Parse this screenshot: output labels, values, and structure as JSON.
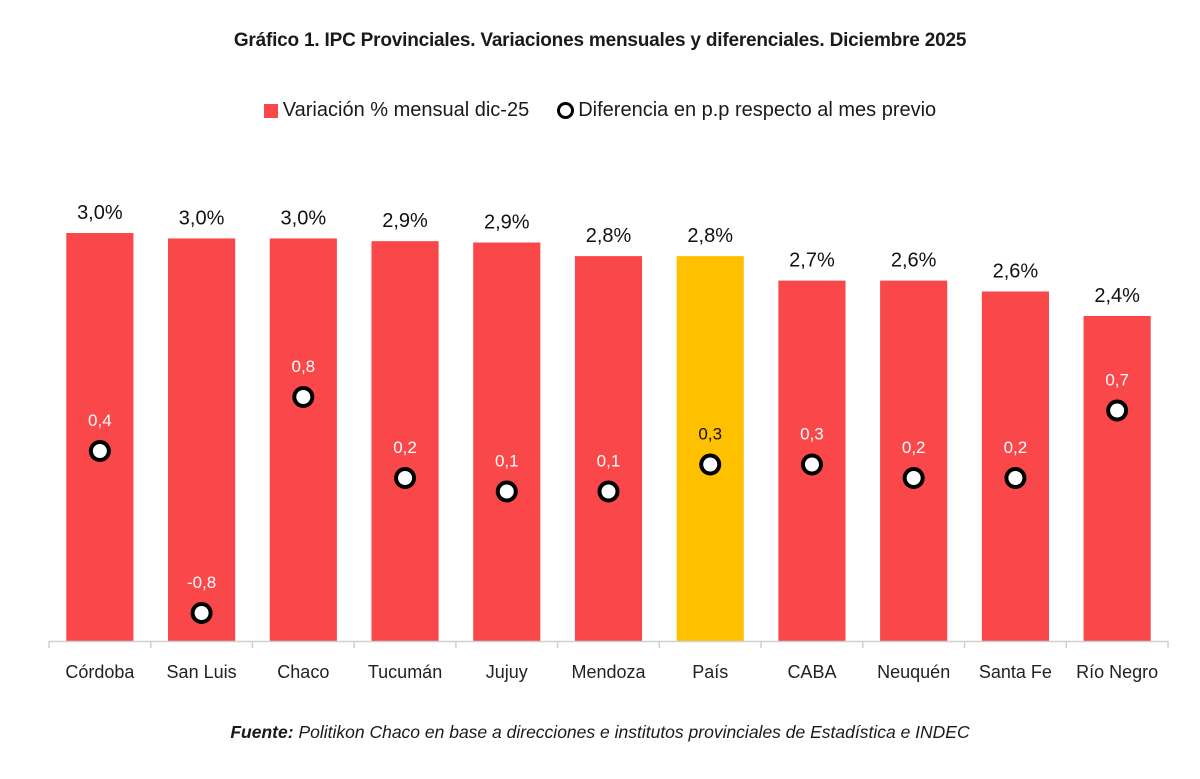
{
  "chart_data": {
    "type": "bar",
    "title": "Gráfico 1. IPC Provinciales. Variaciones mensuales y diferenciales. Diciembre 2025",
    "categories": [
      "Córdoba",
      "San Luis",
      "Chaco",
      "Tucumán",
      "Jujuy",
      "Mendoza",
      "País",
      "CABA",
      "Neuquén",
      "Santa Fe",
      "Río Negro"
    ],
    "series": [
      {
        "name": "Variación % mensual dic-25",
        "kind": "bar",
        "values": [
          3.0,
          2.96,
          2.96,
          2.94,
          2.93,
          2.83,
          2.83,
          2.65,
          2.65,
          2.57,
          2.39
        ],
        "labels": [
          "3,0%",
          "3,0%",
          "3,0%",
          "2,9%",
          "2,9%",
          "2,8%",
          "2,8%",
          "2,7%",
          "2,6%",
          "2,6%",
          "2,4%"
        ],
        "color": "#F9474A",
        "highlight_color": "#FFC000",
        "highlight_category": "País"
      },
      {
        "name": "Diferencia en p.p respecto al mes previo",
        "kind": "marker",
        "values": [
          0.4,
          -0.8,
          0.8,
          0.2,
          0.1,
          0.1,
          0.3,
          0.3,
          0.2,
          0.2,
          0.7
        ],
        "labels": [
          "0,4",
          "-0,8",
          "0,8",
          "0,2",
          "0,1",
          "0,1",
          "0,3",
          "0,3",
          "0,2",
          "0,2",
          "0,7"
        ],
        "color": "#000000"
      }
    ],
    "xlabel": "",
    "ylabel": "",
    "ylim": [
      0,
      3.0
    ],
    "y2lim": [
      -1.0,
      1.0
    ],
    "grid": false,
    "legend": "top-center"
  },
  "legend": {
    "bar_label": "Variación % mensual dic-25",
    "dot_label": "Diferencia en p.p respecto al mes previo"
  },
  "footer": {
    "source_label": "Fuente:",
    "source_text": "Politikon Chaco en base a direcciones e institutos provinciales de Estadística e INDEC"
  }
}
